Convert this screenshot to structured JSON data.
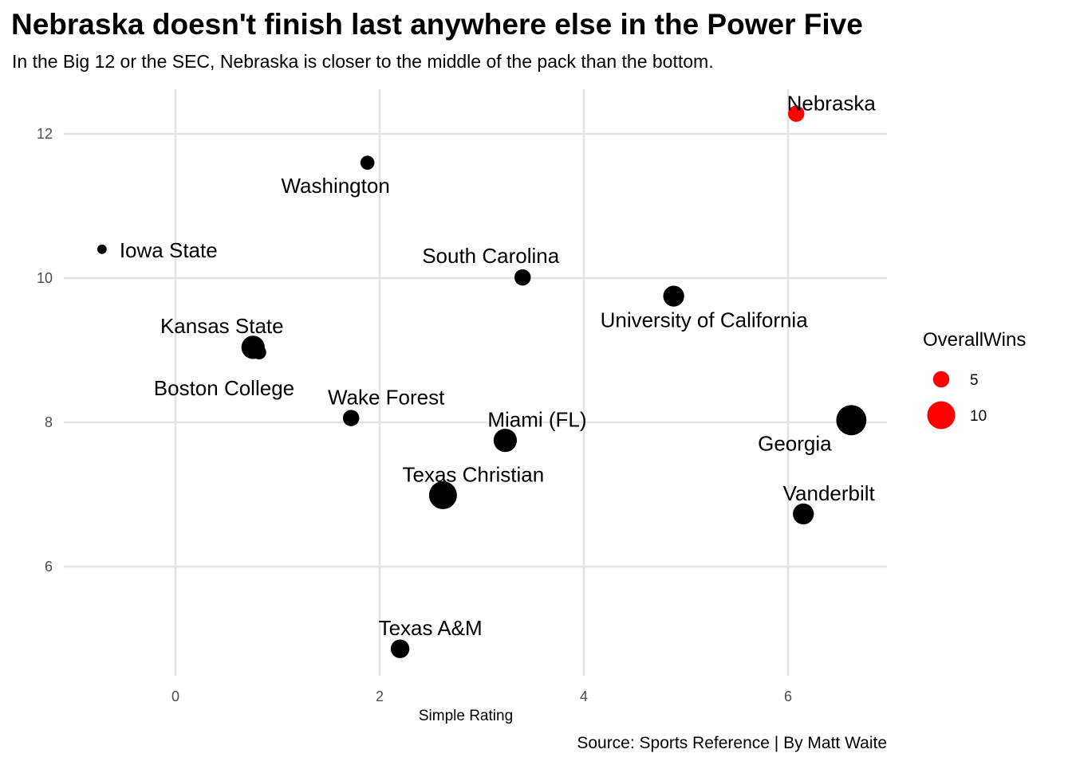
{
  "header": {
    "title": "Nebraska doesn't finish last anywhere else in the Power Five",
    "subtitle": "In the Big 12 or the SEC, Nebraska is closer to the middle of the pack than the bottom.",
    "caption": "Source: Sports Reference | By Matt Waite"
  },
  "chart_data": {
    "type": "scatter",
    "xlabel": "Simple Rating",
    "ylabel": "",
    "xlim": [
      -1.0,
      7.0
    ],
    "ylim": [
      4.6,
      12.6
    ],
    "x_ticks": [
      0,
      2,
      4,
      6
    ],
    "y_ticks": [
      6,
      8,
      10,
      12
    ],
    "grid": true,
    "legend": {
      "title": "OverallWins",
      "position": "right",
      "entries": [
        {
          "label": "5",
          "value": 5
        },
        {
          "label": "10",
          "value": 10
        }
      ]
    },
    "colors": {
      "highlight": "#ff0000",
      "default": "#000000"
    },
    "points": [
      {
        "label": "Nebraska",
        "x": 6.08,
        "y": 12.28,
        "wins": 5,
        "highlight": true
      },
      {
        "label": "Washington",
        "x": 1.88,
        "y": 11.6,
        "wins": 4,
        "highlight": false
      },
      {
        "label": "Iowa State",
        "x": -0.72,
        "y": 10.4,
        "wins": 2,
        "highlight": false
      },
      {
        "label": "South Carolina",
        "x": 3.4,
        "y": 10.01,
        "wins": 5,
        "highlight": false
      },
      {
        "label": "University of California",
        "x": 4.88,
        "y": 9.75,
        "wins": 7,
        "highlight": false
      },
      {
        "label": "Kansas State",
        "x": 0.76,
        "y": 9.04,
        "wins": 8,
        "highlight": false
      },
      {
        "label": "Boston College",
        "x": 0.82,
        "y": 8.97,
        "wins": 4,
        "highlight": false
      },
      {
        "label": "Wake Forest",
        "x": 1.72,
        "y": 8.06,
        "wins": 5,
        "highlight": false
      },
      {
        "label": "Miami (FL)",
        "x": 3.23,
        "y": 7.75,
        "wins": 8,
        "highlight": false
      },
      {
        "label": "Georgia",
        "x": 6.62,
        "y": 8.03,
        "wins": 11,
        "highlight": false
      },
      {
        "label": "Texas Christian",
        "x": 2.62,
        "y": 6.99,
        "wins": 10,
        "highlight": false
      },
      {
        "label": "Vanderbilt",
        "x": 6.15,
        "y": 6.73,
        "wins": 7,
        "highlight": false
      },
      {
        "label": "Texas A&M",
        "x": 2.2,
        "y": 4.86,
        "wins": 6,
        "highlight": false
      }
    ]
  }
}
